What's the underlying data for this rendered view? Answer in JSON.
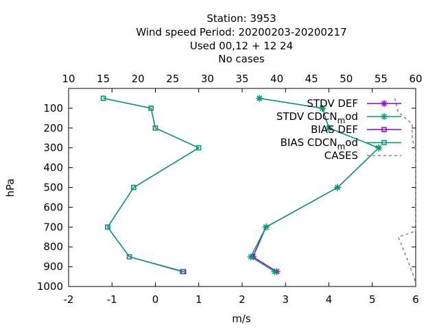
{
  "chart_data": {
    "type": "line",
    "title": [
      "Station:     3953",
      "Wind speed  Period: 20200203-20200217",
      "Used  00,12  + 12 24",
      "No cases"
    ],
    "xlabel": "m/s",
    "ylabel": "hPa",
    "xlim": [
      -2,
      6
    ],
    "x2lim": [
      10,
      60
    ],
    "ylim": [
      1000,
      0
    ],
    "x_ticks": [
      "-2",
      "-1",
      "0",
      "1",
      "2",
      "3",
      "4",
      "5",
      "6"
    ],
    "x2_ticks": [
      "10",
      "15",
      "20",
      "25",
      "30",
      "35",
      "40",
      "45",
      "50",
      "55",
      "60"
    ],
    "y_ticks": [
      "100",
      "200",
      "300",
      "400",
      "500",
      "600",
      "700",
      "800",
      "900",
      "1000"
    ],
    "legend_position": "top-right",
    "pressure": [
      50,
      100,
      200,
      300,
      500,
      700,
      850,
      925
    ],
    "series": [
      {
        "name": "STDV DEF",
        "color": "#9400d3",
        "marker": "star",
        "x": [
          2.4,
          3.85,
          4.0,
          5.15,
          4.2,
          2.55,
          2.25,
          2.8
        ]
      },
      {
        "name": "STDV CDCN_mod",
        "color": "#009e73",
        "marker": "star",
        "x": [
          2.4,
          3.85,
          4.0,
          5.15,
          4.2,
          2.55,
          2.2,
          2.75
        ]
      },
      {
        "name": "BIAS DEF",
        "color": "#9400d3",
        "marker": "square",
        "x": [
          -1.2,
          -0.1,
          0.0,
          1.0,
          -0.5,
          -1.1,
          -0.6,
          0.65
        ]
      },
      {
        "name": "BIAS CDCN_mod",
        "color": "#009e73",
        "marker": "square",
        "x": [
          -1.2,
          -0.1,
          0.0,
          1.0,
          -0.5,
          -1.1,
          -0.6,
          0.62
        ]
      },
      {
        "name": "CASES",
        "color": "#808080",
        "dashed": true,
        "axis": "x2",
        "x": [
          57,
          57.5,
          59.5,
          59.5,
          60,
          60,
          60,
          57.5,
          59,
          60
        ],
        "y": [
          50,
          120,
          180,
          260,
          300,
          600,
          720,
          750,
          880,
          980
        ]
      }
    ]
  }
}
